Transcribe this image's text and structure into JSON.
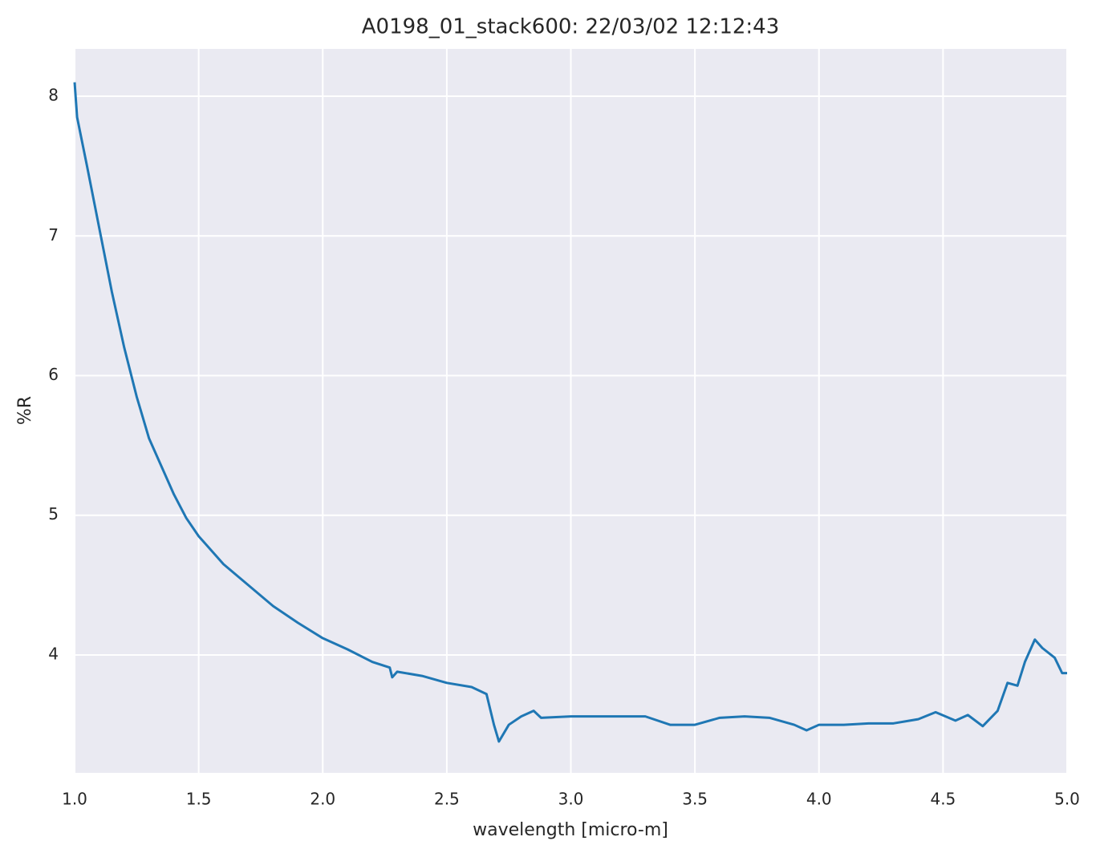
{
  "chart_data": {
    "type": "line",
    "title": "A0198_01_stack600:  22/03/02 12:12:43",
    "x_label": "wavelength [micro-m]",
    "y_label": "%R",
    "x": [
      1.0,
      1.01,
      1.05,
      1.1,
      1.15,
      1.2,
      1.25,
      1.3,
      1.35,
      1.4,
      1.45,
      1.5,
      1.6,
      1.7,
      1.8,
      1.9,
      2.0,
      2.1,
      2.2,
      2.27,
      2.28,
      2.3,
      2.4,
      2.5,
      2.6,
      2.66,
      2.69,
      2.71,
      2.75,
      2.8,
      2.85,
      2.88,
      3.0,
      3.1,
      3.2,
      3.3,
      3.4,
      3.5,
      3.6,
      3.7,
      3.8,
      3.9,
      3.95,
      4.0,
      4.1,
      4.2,
      4.3,
      4.4,
      4.47,
      4.55,
      4.6,
      4.66,
      4.72,
      4.76,
      4.8,
      4.83,
      4.87,
      4.9,
      4.95,
      4.98,
      5.0
    ],
    "series": [
      {
        "name": "%R",
        "color": "#1f77b4",
        "values": [
          8.1,
          7.85,
          7.5,
          7.05,
          6.6,
          6.2,
          5.85,
          5.55,
          5.35,
          5.15,
          4.98,
          4.85,
          4.65,
          4.5,
          4.35,
          4.23,
          4.12,
          4.04,
          3.95,
          3.91,
          3.84,
          3.88,
          3.85,
          3.8,
          3.77,
          3.72,
          3.5,
          3.38,
          3.5,
          3.56,
          3.6,
          3.55,
          3.56,
          3.56,
          3.56,
          3.56,
          3.5,
          3.5,
          3.55,
          3.56,
          3.55,
          3.5,
          3.46,
          3.5,
          3.5,
          3.51,
          3.51,
          3.54,
          3.59,
          3.53,
          3.57,
          3.49,
          3.6,
          3.8,
          3.78,
          3.95,
          4.11,
          4.05,
          3.98,
          3.87,
          3.87
        ]
      }
    ],
    "xlim": [
      1.0,
      5.0
    ],
    "ylim": [
      3.156,
      8.339
    ],
    "xticks": [
      {
        "value": 1.0,
        "label": "1.0"
      },
      {
        "value": 1.5,
        "label": "1.5"
      },
      {
        "value": 2.0,
        "label": "2.0"
      },
      {
        "value": 2.5,
        "label": "2.5"
      },
      {
        "value": 3.0,
        "label": "3.0"
      },
      {
        "value": 3.5,
        "label": "3.5"
      },
      {
        "value": 4.0,
        "label": "4.0"
      },
      {
        "value": 4.5,
        "label": "4.5"
      },
      {
        "value": 5.0,
        "label": "5.0"
      }
    ],
    "yticks": [
      4,
      5,
      6,
      7,
      8
    ],
    "grid": true
  }
}
